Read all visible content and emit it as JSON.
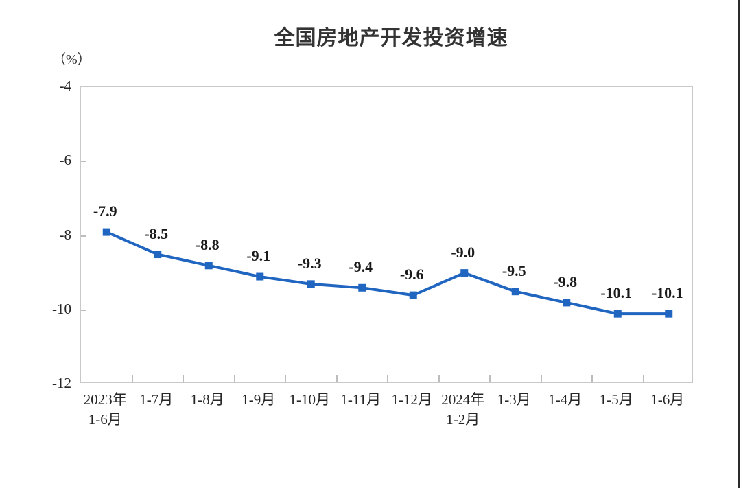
{
  "page": {
    "background_color": "#ffffff",
    "window_edge_line_color": "#2b2b2b"
  },
  "chart_data": {
    "type": "line",
    "title": "全国房地产开发投资增速",
    "unit_label": "（%）",
    "categories": [
      [
        "2023年",
        "1-6月"
      ],
      [
        "1-7月"
      ],
      [
        "1-8月"
      ],
      [
        "1-9月"
      ],
      [
        "1-10月"
      ],
      [
        "1-11月"
      ],
      [
        "1-12月"
      ],
      [
        "2024年",
        "1-2月"
      ],
      [
        "1-3月"
      ],
      [
        "1-4月"
      ],
      [
        "1-5月"
      ],
      [
        "1-6月"
      ]
    ],
    "series": [
      {
        "name": "全国房地产开发投资增速",
        "values": [
          -7.9,
          -8.5,
          -8.8,
          -9.1,
          -9.3,
          -9.4,
          -9.6,
          -9.0,
          -9.5,
          -9.8,
          -10.1,
          -10.1
        ],
        "color": "#2065c0",
        "marker": "square"
      }
    ],
    "data_labels": [
      "-7.9",
      "-8.5",
      "-8.8",
      "-9.1",
      "-9.3",
      "-9.4",
      "-9.6",
      "-9.0",
      "-9.5",
      "-9.8",
      "-10.1",
      "-10.1"
    ],
    "ylim": [
      -12,
      -4
    ],
    "yticks": [
      -4,
      -6,
      -8,
      -10,
      -12
    ],
    "ytick_labels": [
      "-4",
      "-6",
      "-8",
      "-10",
      "-12"
    ],
    "grid": false,
    "legend_position": "none",
    "plot_border_color": "#c9c9c9",
    "tick_color": "#bdbdbd"
  }
}
